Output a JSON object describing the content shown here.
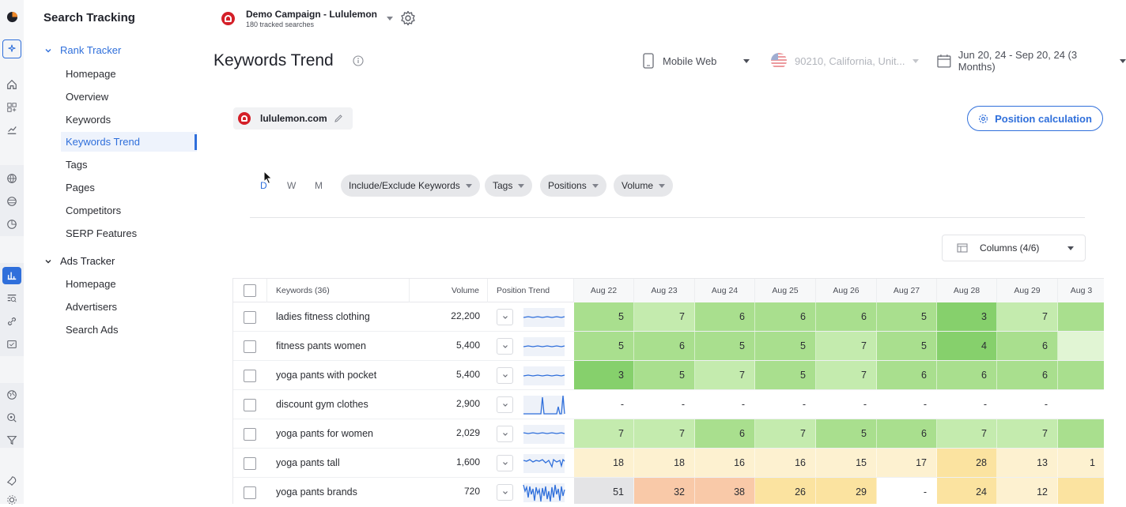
{
  "app": {
    "title": "Search Tracking"
  },
  "colors": {
    "accent": "#2f6fdb",
    "brand": "#d41f28"
  },
  "rail": {
    "icons": [
      "logo-icon",
      "sparkles-icon",
      "home-icon",
      "grid-icon",
      "chart-line-icon",
      "globe-icon",
      "globe-grid-icon",
      "pie-icon",
      "bar-chart-icon",
      "search-list-icon",
      "link-icon",
      "ads-icon",
      "globe-alt-icon",
      "search-target-icon",
      "filter-icon",
      "rocket-icon",
      "settings-icon"
    ]
  },
  "sidebar": {
    "sections": [
      {
        "label": "Rank Tracker",
        "items": [
          "Homepage",
          "Overview",
          "Keywords",
          "Keywords Trend",
          "Tags",
          "Pages",
          "Competitors",
          "SERP Features"
        ]
      },
      {
        "label": "Ads Tracker",
        "items": [
          "Homepage",
          "Advertisers",
          "Search Ads"
        ]
      }
    ],
    "active": "Keywords Trend"
  },
  "campaign": {
    "name": "Demo Campaign - Lululemon",
    "sub": "180 tracked searches"
  },
  "header": {
    "title": "Keywords Trend"
  },
  "filters": {
    "device": "Mobile Web",
    "location": "90210, California, Unit...",
    "date": "Jun 20, 24 - Sep 20, 24 (3 Months)"
  },
  "domain": {
    "label": "lululemon.com"
  },
  "position_calc": {
    "label": "Position calculation"
  },
  "granularity": {
    "options": [
      "D",
      "W",
      "M"
    ],
    "active": "D"
  },
  "pills": [
    "Include/Exclude Keywords",
    "Tags",
    "Positions",
    "Volume"
  ],
  "columns_btn": {
    "label": "Columns (4/6)"
  },
  "table": {
    "headers": {
      "keywords": "Keywords (36)",
      "volume": "Volume",
      "trend": "Position Trend"
    },
    "dates": [
      "Aug 22",
      "Aug 23",
      "Aug 24",
      "Aug 25",
      "Aug 26",
      "Aug 27",
      "Aug 28",
      "Aug 29",
      "Aug 3"
    ],
    "rows": [
      {
        "keyword": "ladies fitness clothing",
        "volume": "22,200",
        "positions": [
          "5",
          "7",
          "6",
          "6",
          "6",
          "5",
          "3",
          "7",
          ""
        ],
        "colors": [
          "#a9df8e",
          "#c4ebae",
          "#a9df8e",
          "#a9df8e",
          "#a9df8e",
          "#a9df8e",
          "#86d06c",
          "#c4ebae",
          "#a9df8e"
        ],
        "spark": "flat"
      },
      {
        "keyword": "fitness pants women",
        "volume": "5,400",
        "positions": [
          "5",
          "6",
          "5",
          "5",
          "7",
          "5",
          "4",
          "6",
          ""
        ],
        "colors": [
          "#a9df8e",
          "#a9df8e",
          "#a9df8e",
          "#a9df8e",
          "#c4ebae",
          "#a9df8e",
          "#86d06c",
          "#a9df8e",
          "#e1f5d4"
        ],
        "spark": "flat"
      },
      {
        "keyword": "yoga pants with pocket",
        "volume": "5,400",
        "positions": [
          "3",
          "5",
          "7",
          "5",
          "7",
          "6",
          "6",
          "6",
          ""
        ],
        "colors": [
          "#86d06c",
          "#a9df8e",
          "#c4ebae",
          "#a9df8e",
          "#c4ebae",
          "#a9df8e",
          "#a9df8e",
          "#a9df8e",
          "#a9df8e"
        ],
        "spark": "flat"
      },
      {
        "keyword": "discount gym clothes",
        "volume": "2,900",
        "positions": [
          "-",
          "-",
          "-",
          "-",
          "-",
          "-",
          "-",
          "-",
          ""
        ],
        "colors": [
          "#ffffff",
          "#ffffff",
          "#ffffff",
          "#ffffff",
          "#ffffff",
          "#ffffff",
          "#ffffff",
          "#ffffff",
          "#ffffff"
        ],
        "spark": "spike"
      },
      {
        "keyword": "yoga pants for women",
        "volume": "2,029",
        "positions": [
          "7",
          "7",
          "6",
          "7",
          "5",
          "6",
          "7",
          "7",
          ""
        ],
        "colors": [
          "#c4ebae",
          "#c4ebae",
          "#a9df8e",
          "#c4ebae",
          "#a9df8e",
          "#a9df8e",
          "#c4ebae",
          "#c4ebae",
          "#a9df8e"
        ],
        "spark": "flat2"
      },
      {
        "keyword": "yoga pants tall",
        "volume": "1,600",
        "positions": [
          "18",
          "18",
          "16",
          "16",
          "15",
          "17",
          "28",
          "13",
          "1"
        ],
        "colors": [
          "#fdf1d0",
          "#fdf1d0",
          "#fdf1d0",
          "#fdf1d0",
          "#fdf1d0",
          "#fdf1d0",
          "#fbe3a0",
          "#fdf1d0",
          "#fdf1d0"
        ],
        "spark": "noisy"
      },
      {
        "keyword": "yoga pants brands",
        "volume": "720",
        "positions": [
          "51",
          "32",
          "38",
          "26",
          "29",
          "-",
          "24",
          "12",
          ""
        ],
        "colors": [
          "#e4e4e6",
          "#f9c9a8",
          "#f9c9a8",
          "#fbe3a0",
          "#fbe3a0",
          "#ffffff",
          "#fbe3a0",
          "#fdf1d0",
          "#fbe3a0"
        ],
        "spark": "wild"
      }
    ]
  }
}
